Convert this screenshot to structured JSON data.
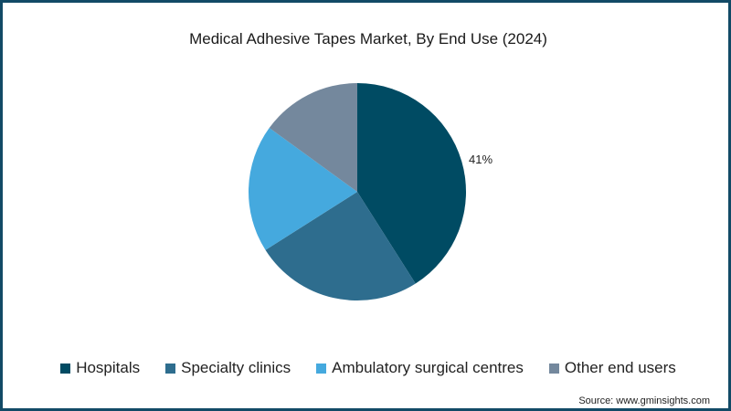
{
  "chart_data": {
    "type": "pie",
    "title": "Medical Adhesive Tapes Market, By End Use (2024)",
    "categories": [
      "Hospitals",
      "Specialty clinics",
      "Ambulatory surgical centres",
      "Other end users"
    ],
    "values": [
      41,
      25,
      19,
      15
    ],
    "colors": [
      "#004b63",
      "#2e6d8e",
      "#45a9de",
      "#74889d"
    ],
    "data_labels": [
      "41%",
      "",
      "",
      ""
    ],
    "start_angle": "12 o'clock, clockwise",
    "legend_position": "bottom"
  },
  "title": "Medical Adhesive Tapes Market, By End Use (2024)",
  "legend": [
    {
      "label": "Hospitals",
      "color": "#004b63"
    },
    {
      "label": "Specialty clinics",
      "color": "#2e6d8e"
    },
    {
      "label": "Ambulatory surgical centres",
      "color": "#45a9de"
    },
    {
      "label": "Other end users",
      "color": "#74889d"
    }
  ],
  "label_hospitals": "41%",
  "source": "Source: www.gminsights.com",
  "border_color": "#124a66"
}
